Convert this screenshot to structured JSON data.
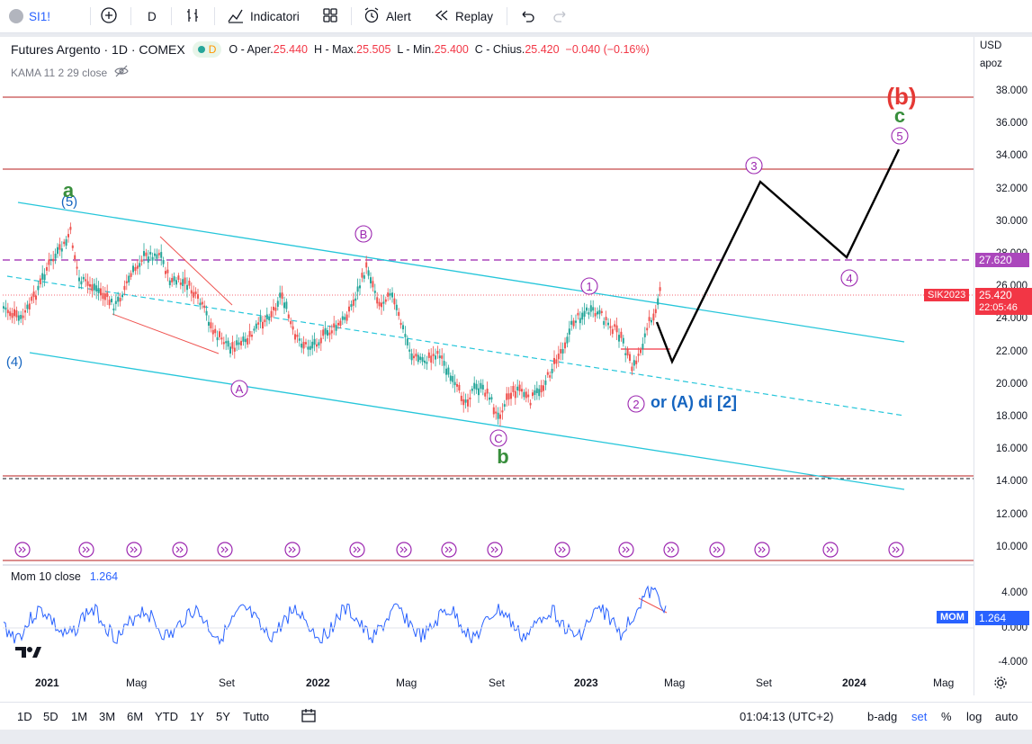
{
  "toolbar": {
    "symbol": "SI1!",
    "interval": "D",
    "indicators_label": "Indicatori",
    "alert_label": "Alert",
    "replay_label": "Replay"
  },
  "legend": {
    "title": "Futures Argento · 1D · COMEX",
    "delay_badge": "D",
    "o_label": "O - Aper.",
    "o_value": "25.440",
    "h_label": "H - Max.",
    "h_value": "25.505",
    "l_label": "L - Min.",
    "l_value": "25.400",
    "c_label": "C - Chius.",
    "c_value": "25.420",
    "change": "−0.040 (−0.16%)",
    "kama": "KAMA 11 2 29 close"
  },
  "price_scale": {
    "currency": "USD",
    "adj": "apoz",
    "ticks": [
      "38.000",
      "36.000",
      "34.000",
      "32.000",
      "30.000",
      "28.000",
      "26.000",
      "24.000",
      "22.000",
      "20.000",
      "18.000",
      "16.000",
      "14.000",
      "12.000",
      "10.000"
    ],
    "dashed_level": "27.620",
    "symbol_tag": "SIK2023",
    "last_price": "25.420",
    "countdown": "22:05:46",
    "mom_ticks": [
      "4.000",
      "0.000",
      "-4.000"
    ],
    "mom_tag_label": "MOM",
    "mom_tag_value": "1.264"
  },
  "time_axis": [
    "2021",
    "Mag",
    "Set",
    "2022",
    "Mag",
    "Set",
    "2023",
    "Mag",
    "Set",
    "2024",
    "Mag"
  ],
  "momentum": {
    "label": "Mom 10 close",
    "value": "1.264"
  },
  "annotations": {
    "b_paren": "(b)",
    "c_green": "c",
    "five": "5",
    "three": "3",
    "four": "4",
    "a_green": "a",
    "five_paren": "(5)",
    "four_paren": "(4)",
    "B": "B",
    "A": "A",
    "one": "1",
    "two": "2",
    "C": "C",
    "b_green": "b",
    "alt": "or (A) di [2]"
  },
  "bottom": {
    "ranges": [
      "1D",
      "5D",
      "1M",
      "3M",
      "6M",
      "YTD",
      "1Y",
      "5Y",
      "Tutto"
    ],
    "clock": "01:04:13 (UTC+2)",
    "badj": "b-adg",
    "set": "set",
    "pct": "%",
    "log": "log",
    "auto": "auto"
  },
  "colors": {
    "accent": "#2962ff",
    "wave_purple": "#9c27b0",
    "channel": "#26c6da",
    "red": "#f23645",
    "green": "#388e3c"
  }
}
